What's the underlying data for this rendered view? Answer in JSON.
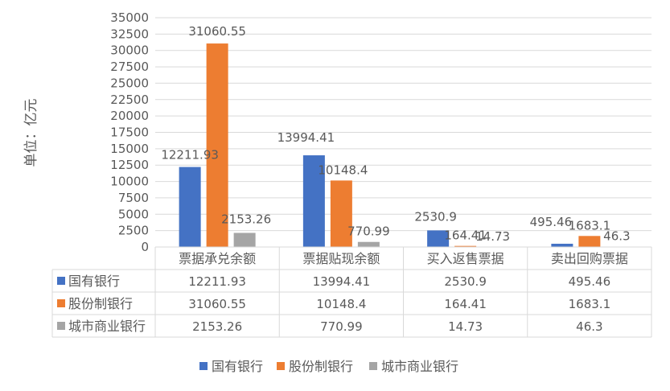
{
  "chart_data": {
    "type": "bar",
    "ylabel": "单位：亿元",
    "ylim": [
      0,
      35000
    ],
    "yticks": [
      0,
      2500,
      5000,
      7500,
      10000,
      12500,
      15000,
      17500,
      20000,
      22500,
      25000,
      27500,
      30000,
      32500,
      35000
    ],
    "grid": true,
    "legend_position": "bottom",
    "categories": [
      "票据承兑余额",
      "票据贴现余额",
      "买入返售票据",
      "卖出回购票据"
    ],
    "series": [
      {
        "name": "国有银行",
        "color": "#4472C4",
        "values": [
          12211.93,
          13994.41,
          2530.9,
          495.46
        ],
        "labels": [
          "12211.93",
          "13994.41",
          "2530.9",
          "495.46"
        ]
      },
      {
        "name": "股份制银行",
        "color": "#ED7D31",
        "values": [
          31060.55,
          10148.4,
          164.41,
          1683.1
        ],
        "labels": [
          "31060.55",
          "10148.4",
          "164.41",
          "1683.1"
        ]
      },
      {
        "name": "城市商业银行",
        "color": "#A5A5A5",
        "values": [
          2153.26,
          770.99,
          14.73,
          46.3
        ],
        "labels": [
          "2153.26",
          "770.99",
          "14.73",
          "46.3"
        ]
      }
    ]
  }
}
